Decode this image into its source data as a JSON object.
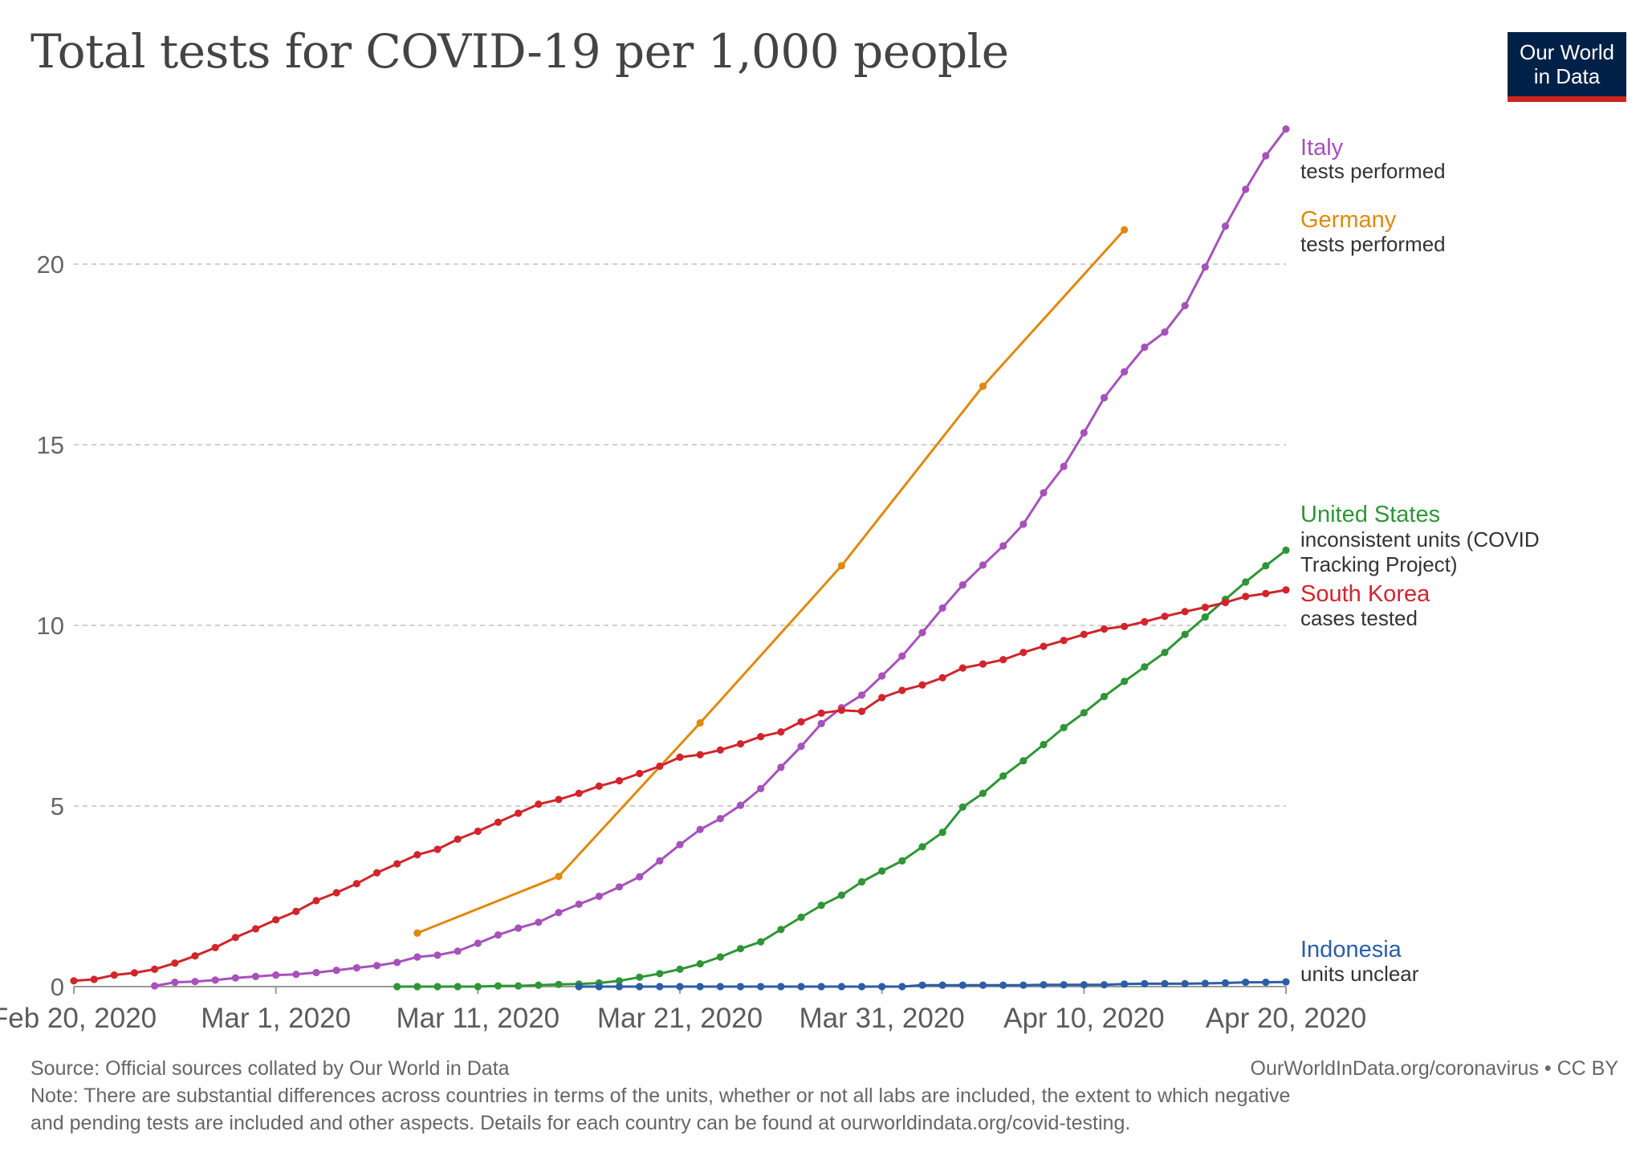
{
  "title": "Total tests for COVID-19 per 1,000 people",
  "logo": {
    "line1": "Our World",
    "line2": "in Data"
  },
  "footer": {
    "source": "Source: Official sources collated by Our World in Data",
    "credit": "OurWorldInData.org/coronavirus • CC BY",
    "note_line1": "Note: There are substantial differences across countries in terms of the units, whether or not all labs are included, the extent to which negative",
    "note_line2": "and pending tests are included and other aspects. Details for each country can be found at ourworldindata.org/covid-testing."
  },
  "chart_data": {
    "type": "line",
    "title": "Total tests for COVID-19 per 1,000 people",
    "xlabel": "",
    "ylabel": "",
    "xlim": [
      0,
      60
    ],
    "ylim": [
      0,
      25
    ],
    "x_unit": "days since Feb 20, 2020",
    "x_ticks": [
      {
        "value": 0,
        "label": "Feb 20, 2020"
      },
      {
        "value": 10,
        "label": "Mar 1, 2020"
      },
      {
        "value": 20,
        "label": "Mar 11, 2020"
      },
      {
        "value": 30,
        "label": "Mar 21, 2020"
      },
      {
        "value": 40,
        "label": "Mar 31, 2020"
      },
      {
        "value": 50,
        "label": "Apr 10, 2020"
      },
      {
        "value": 60,
        "label": "Apr 20, 2020"
      }
    ],
    "y_ticks": [
      0,
      5,
      10,
      15,
      20
    ],
    "grid": true,
    "series": [
      {
        "name": "Italy",
        "sublabel": "tests performed",
        "color": "#a652ba",
        "x": [
          4,
          5,
          6,
          7,
          8,
          9,
          10,
          11,
          12,
          13,
          14,
          15,
          16,
          17,
          18,
          19,
          20,
          21,
          22,
          23,
          24,
          25,
          26,
          27,
          28,
          29,
          30,
          31,
          32,
          33,
          34,
          35,
          36,
          37,
          38,
          39,
          40,
          41,
          42,
          43,
          44,
          45,
          46,
          47,
          48,
          49,
          50,
          51,
          52,
          53,
          54,
          55,
          56,
          57,
          58,
          59,
          60
        ],
        "y": [
          0.02,
          0.12,
          0.14,
          0.18,
          0.24,
          0.28,
          0.32,
          0.34,
          0.39,
          0.45,
          0.52,
          0.58,
          0.67,
          0.82,
          0.87,
          0.98,
          1.2,
          1.43,
          1.62,
          1.78,
          2.05,
          2.28,
          2.5,
          2.76,
          3.04,
          3.48,
          3.93,
          4.35,
          4.65,
          5.02,
          5.48,
          6.07,
          6.65,
          7.28,
          7.72,
          8.07,
          8.6,
          9.15,
          9.8,
          10.48,
          11.12,
          11.67,
          12.2,
          12.8,
          13.67,
          14.4,
          15.33,
          16.3,
          17.02,
          17.7,
          18.12,
          18.85,
          19.92,
          21.05,
          22.07,
          23.0,
          23.74
        ]
      },
      {
        "name": "Germany",
        "sublabel": "tests performed",
        "color": "#e0890c",
        "x": [
          17,
          24,
          31,
          38,
          45,
          52
        ],
        "y": [
          1.48,
          3.05,
          7.3,
          11.65,
          16.62,
          20.95
        ]
      },
      {
        "name": "United States",
        "sublabel": "inconsistent units (COVID Tracking Project)",
        "color": "#2f9536",
        "x": [
          16,
          17,
          18,
          19,
          20,
          21,
          22,
          23,
          24,
          25,
          26,
          27,
          28,
          29,
          30,
          31,
          32,
          33,
          34,
          35,
          36,
          37,
          38,
          39,
          40,
          41,
          42,
          43,
          44,
          45,
          46,
          47,
          48,
          49,
          50,
          51,
          52,
          53,
          54,
          55,
          56,
          57,
          58,
          59,
          60
        ],
        "y": [
          0.0,
          0.0,
          0.0,
          0.0,
          0.0,
          0.02,
          0.02,
          0.04,
          0.06,
          0.07,
          0.1,
          0.16,
          0.26,
          0.36,
          0.48,
          0.63,
          0.82,
          1.05,
          1.24,
          1.58,
          1.92,
          2.25,
          2.53,
          2.9,
          3.2,
          3.48,
          3.87,
          4.27,
          4.97,
          5.35,
          5.83,
          6.25,
          6.7,
          7.17,
          7.58,
          8.03,
          8.45,
          8.85,
          9.25,
          9.75,
          10.23,
          10.72,
          11.2,
          11.65,
          12.08
        ]
      },
      {
        "name": "South Korea",
        "sublabel": "cases tested",
        "color": "#d1252c",
        "x": [
          0,
          1,
          2,
          3,
          4,
          5,
          6,
          7,
          8,
          9,
          10,
          11,
          12,
          13,
          14,
          15,
          16,
          17,
          18,
          19,
          20,
          21,
          22,
          23,
          24,
          25,
          26,
          27,
          28,
          29,
          30,
          31,
          32,
          33,
          34,
          35,
          36,
          37,
          38,
          39,
          40,
          41,
          42,
          43,
          44,
          45,
          46,
          47,
          48,
          49,
          50,
          51,
          52,
          53,
          54,
          55,
          56,
          57,
          58,
          59,
          60
        ],
        "y": [
          0.16,
          0.2,
          0.32,
          0.38,
          0.48,
          0.65,
          0.85,
          1.08,
          1.36,
          1.6,
          1.85,
          2.08,
          2.38,
          2.6,
          2.85,
          3.15,
          3.4,
          3.65,
          3.8,
          4.08,
          4.3,
          4.55,
          4.8,
          5.05,
          5.18,
          5.35,
          5.55,
          5.7,
          5.9,
          6.1,
          6.35,
          6.42,
          6.55,
          6.72,
          6.92,
          7.05,
          7.33,
          7.57,
          7.65,
          7.62,
          8.0,
          8.2,
          8.35,
          8.55,
          8.82,
          8.93,
          9.05,
          9.25,
          9.42,
          9.58,
          9.75,
          9.9,
          9.97,
          10.1,
          10.25,
          10.38,
          10.5,
          10.63,
          10.8,
          10.88,
          10.98
        ]
      },
      {
        "name": "Indonesia",
        "sublabel": "units unclear",
        "color": "#2c5da7",
        "x": [
          25,
          26,
          27,
          28,
          29,
          30,
          31,
          32,
          33,
          34,
          35,
          36,
          37,
          38,
          39,
          40,
          41,
          42,
          43,
          44,
          45,
          46,
          47,
          48,
          49,
          50,
          51,
          52,
          53,
          54,
          55,
          56,
          57,
          58,
          59,
          60
        ],
        "y": [
          0.0,
          0.0,
          0.0,
          0.0,
          0.0,
          0.0,
          0.0,
          0.0,
          0.0,
          0.0,
          0.0,
          0.0,
          0.0,
          0.0,
          0.0,
          0.0,
          0.0,
          0.04,
          0.04,
          0.04,
          0.04,
          0.04,
          0.04,
          0.05,
          0.05,
          0.05,
          0.05,
          0.07,
          0.08,
          0.08,
          0.08,
          0.09,
          0.1,
          0.12,
          0.12,
          0.13
        ]
      }
    ]
  }
}
